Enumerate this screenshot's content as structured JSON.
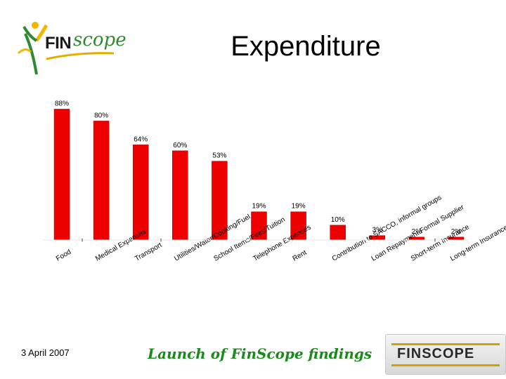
{
  "header": {
    "logo_fin": "FIN",
    "logo_scope": "scope",
    "title": "Expenditure"
  },
  "footer": {
    "date": "3 April 2007",
    "tagline": "Launch of FinScope findings",
    "logo_text": "FINSCOPE"
  },
  "colors": {
    "bar": "#ee0000",
    "logo_green": "#2f8a2f",
    "logo_yellow": "#c9a500"
  },
  "chart_data": {
    "type": "bar",
    "title": "Expenditure",
    "categories": [
      "Food",
      "Medical Expenses",
      "Transport",
      "Utilities/Water/Cooking/Fuel",
      "School Items/Fees/Tuition",
      "Telephone Expenses",
      "Rent",
      "Contribution to SACCO, informal groups",
      "Loan Repayment-Formal Supplier",
      "Short-term Insurance",
      "Long-term Insurance"
    ],
    "values": [
      88,
      80,
      64,
      60,
      53,
      19,
      19,
      10,
      3,
      2,
      2
    ],
    "data_labels": [
      "88%",
      "80%",
      "64%",
      "60%",
      "53%",
      "19%",
      "19%",
      "10%",
      "3%",
      "2%",
      "2%"
    ],
    "ylim": [
      0,
      100
    ],
    "grid": false,
    "legend": "none"
  }
}
